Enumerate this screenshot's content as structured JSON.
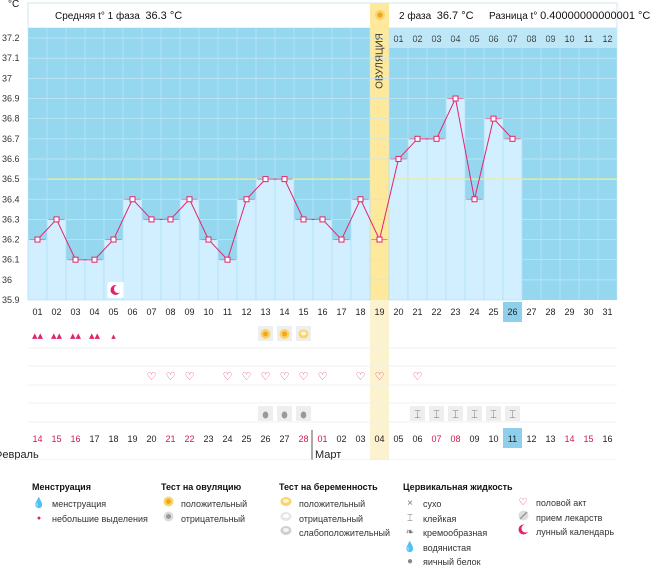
{
  "header": {
    "phase1_label": "Средняя t° 1 фаза",
    "phase1_value": "36.3 °C",
    "phase2_label": "2 фаза",
    "phase2_value": "36.7 °C",
    "diff_label": "Разница t°",
    "diff_value": "0.40000000000001 °C",
    "unit": "°C",
    "ovulation_label": "ОВУЛЯЦИЯ"
  },
  "chart_data": {
    "type": "line",
    "title": "",
    "ylabel": "°C",
    "ylim": [
      35.9,
      37.25
    ],
    "yticks": [
      "37.2",
      "37.1",
      "37",
      "36.9",
      "36.8",
      "36.7",
      "36.6",
      "36.5",
      "36.4",
      "36.3",
      "36.2",
      "36.1",
      "36",
      "35.9"
    ],
    "cycle_days": [
      "01",
      "02",
      "03",
      "04",
      "05",
      "06",
      "07",
      "08",
      "09",
      "10",
      "11",
      "12",
      "13",
      "14",
      "15",
      "16",
      "17",
      "18",
      "19",
      "20",
      "21",
      "22",
      "23",
      "24",
      "25",
      "26",
      "27",
      "28",
      "29",
      "30",
      "31"
    ],
    "dates": [
      "14",
      "15",
      "16",
      "17",
      "18",
      "19",
      "20",
      "21",
      "22",
      "23",
      "24",
      "25",
      "26",
      "27",
      "28",
      "01",
      "02",
      "03",
      "04",
      "05",
      "06",
      "07",
      "08",
      "09",
      "10",
      "11",
      "12",
      "13",
      "14",
      "15",
      "16"
    ],
    "weekend_dates": [
      1,
      2,
      3,
      8,
      9,
      15,
      16,
      22,
      23,
      29,
      30
    ],
    "months": [
      "Февраль",
      "Март"
    ],
    "temperature": [
      36.2,
      36.3,
      36.1,
      36.1,
      36.2,
      36.4,
      36.3,
      36.3,
      36.4,
      36.2,
      36.1,
      36.4,
      36.5,
      36.5,
      36.3,
      36.3,
      36.2,
      36.4,
      36.2,
      36.6,
      36.7,
      36.7,
      36.9,
      36.4,
      36.8,
      36.7
    ],
    "coverline": 36.5,
    "ovulation_day": 19,
    "phase2_start_day": 20,
    "current_day": 26,
    "phase2_day_labels": [
      "01",
      "02",
      "03",
      "04",
      "05",
      "06",
      "07",
      "08",
      "09",
      "10",
      "11",
      "12"
    ],
    "menstruation": [
      1,
      2,
      3,
      4
    ],
    "spotting": [
      5
    ],
    "moon": [
      5
    ],
    "ovulation_test_positive": [
      13,
      14
    ],
    "pregnancy_test_positive": [
      15
    ],
    "sex": [
      7,
      8,
      9,
      11,
      12,
      13,
      14,
      15,
      16,
      18,
      19,
      21
    ],
    "mucus_sticky": [
      21,
      22,
      23,
      24,
      25,
      26
    ],
    "mucus_watery": [
      13,
      14,
      15
    ],
    "colors": {
      "plot_bg": "#96d7f0",
      "bar": "#d2efff",
      "line": "#e0256e",
      "ovulation": "#fde89c",
      "coverline": "#f5ee8c",
      "current": "#8ed0eb"
    }
  },
  "legend": {
    "menstruation": {
      "title": "Менструация",
      "items": [
        "менструация",
        "небольшие выделения"
      ]
    },
    "ovulation_test": {
      "title": "Тест на овуляцию",
      "items": [
        "положительный",
        "отрицательный"
      ]
    },
    "pregnancy_test": {
      "title": "Тест на беременность",
      "items": [
        "положительный",
        "отрицательный",
        "слабоположительный"
      ]
    },
    "cervical": {
      "title": "Цервикальная жидкость",
      "items": [
        "сухо",
        "клейкая",
        "кремообразная",
        "водянистая",
        "яичный белок"
      ]
    },
    "other": {
      "items": [
        "половой акт",
        "прием лекарств",
        "лунный календарь"
      ]
    }
  }
}
